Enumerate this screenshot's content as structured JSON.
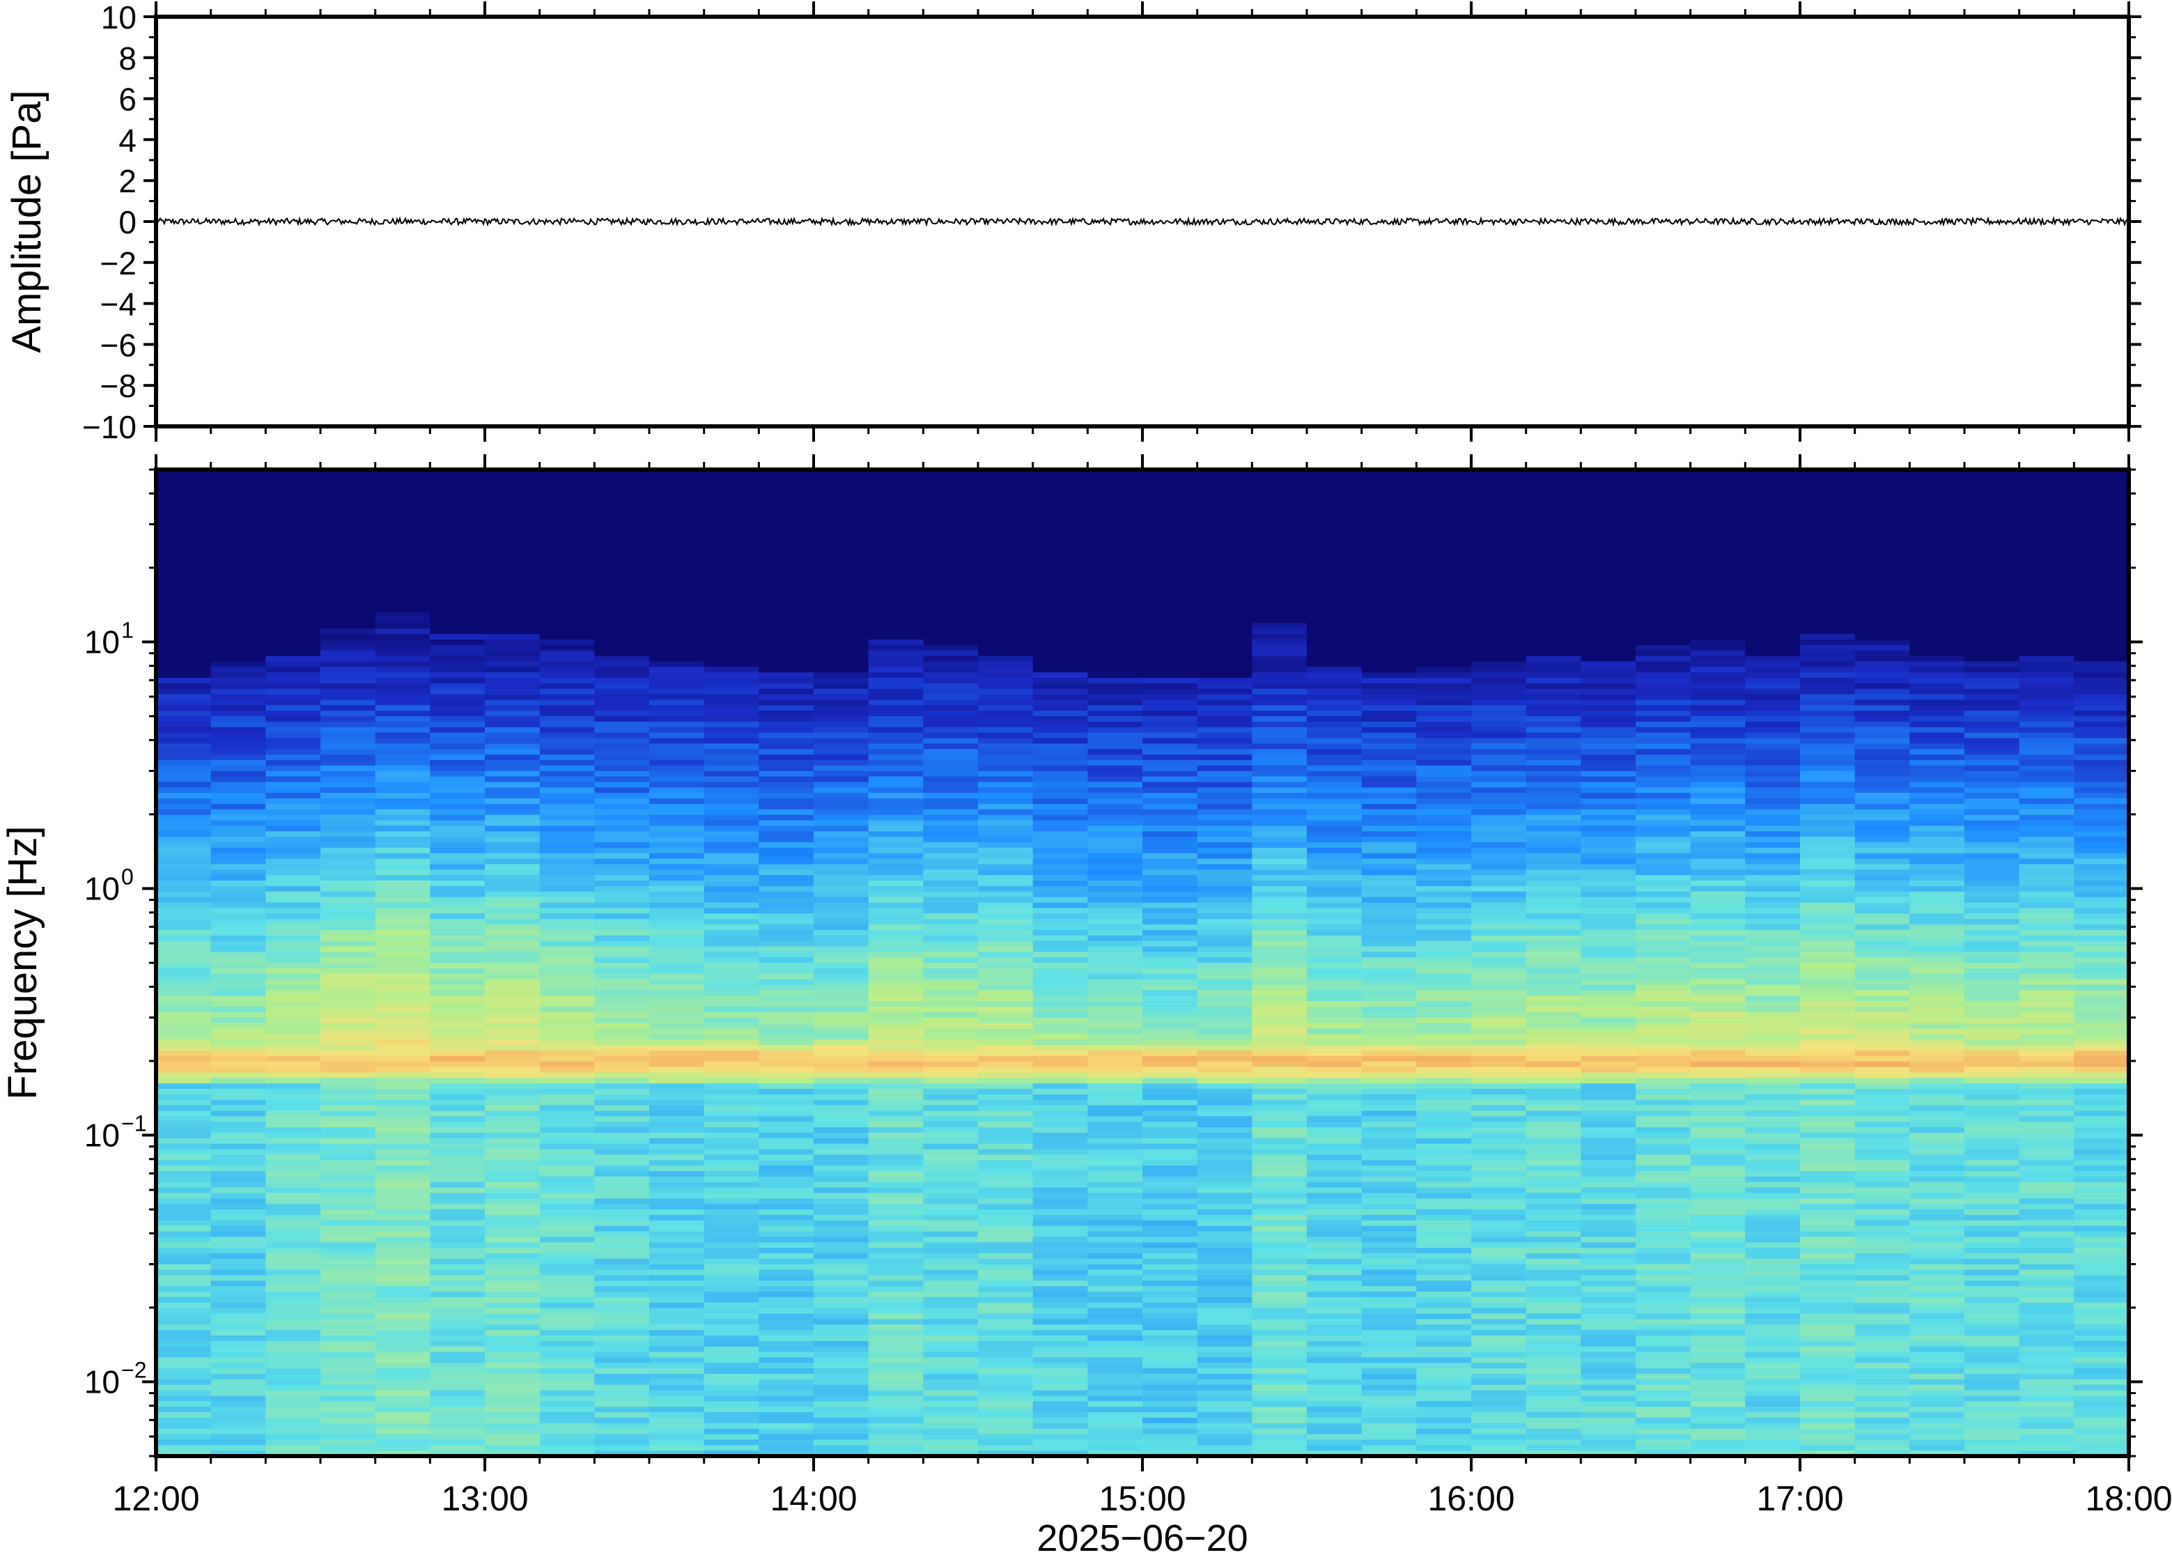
{
  "figure": {
    "xlabel": "2025−06−20",
    "x_ticks": [
      "12:00",
      "13:00",
      "14:00",
      "15:00",
      "16:00",
      "17:00",
      "18:00"
    ],
    "x_range": [
      "12:00",
      "18:00"
    ]
  },
  "chart_data": [
    {
      "type": "line",
      "panel": "waveform",
      "ylabel": "Amplitude [Pa]",
      "ylim": [
        -10,
        10
      ],
      "y_ticks": [
        "10",
        "8",
        "6",
        "4",
        "2",
        "0",
        "−2",
        "−4",
        "−6",
        "−8",
        "−10"
      ],
      "x": [
        "12:00",
        "18:00"
      ],
      "series": [
        {
          "values": [
            0.0,
            0.0
          ],
          "peak_abs_amplitude": 0.15
        }
      ],
      "grid": false,
      "line_color": "#000000"
    },
    {
      "type": "heatmap",
      "panel": "spectrogram",
      "ylabel": "Frequency [Hz]",
      "yscale": "log",
      "ylim": [
        0.005,
        50
      ],
      "y_ticks": [
        {
          "base": "10",
          "exp": "1"
        },
        {
          "base": "10",
          "exp": "0"
        },
        {
          "base": "10",
          "exp": "−1"
        },
        {
          "base": "10",
          "exp": "−2"
        }
      ],
      "x": [
        "12:00",
        "18:00"
      ],
      "colormap": [
        "#0a0a72",
        "#1a2ec8",
        "#1e90ff",
        "#5ee0e6",
        "#b8ee8a",
        "#f7e27a",
        "#f2a25a"
      ],
      "noise_cutoff_hz": 8,
      "microseism_peak_hz": 0.2,
      "time_columns": [
        {
          "t": "12:00",
          "energy": 0.4,
          "cutoff_hz": 7.0
        },
        {
          "t": "12:10",
          "energy": 0.35,
          "cutoff_hz": 8.5
        },
        {
          "t": "12:20",
          "energy": 0.55,
          "cutoff_hz": 9.0
        },
        {
          "t": "12:30",
          "energy": 0.7,
          "cutoff_hz": 11.5
        },
        {
          "t": "12:40",
          "energy": 0.8,
          "cutoff_hz": 13.0
        },
        {
          "t": "12:50",
          "energy": 0.55,
          "cutoff_hz": 11.0
        },
        {
          "t": "13:00",
          "energy": 0.65,
          "cutoff_hz": 11.0
        },
        {
          "t": "13:10",
          "energy": 0.5,
          "cutoff_hz": 10.0
        },
        {
          "t": "13:20",
          "energy": 0.4,
          "cutoff_hz": 9.0
        },
        {
          "t": "13:30",
          "energy": 0.35,
          "cutoff_hz": 8.5
        },
        {
          "t": "13:40",
          "energy": 0.3,
          "cutoff_hz": 8.0
        },
        {
          "t": "13:50",
          "energy": 0.25,
          "cutoff_hz": 7.5
        },
        {
          "t": "14:00",
          "energy": 0.3,
          "cutoff_hz": 7.5
        },
        {
          "t": "14:10",
          "energy": 0.55,
          "cutoff_hz": 10.0
        },
        {
          "t": "14:20",
          "energy": 0.45,
          "cutoff_hz": 9.5
        },
        {
          "t": "14:30",
          "energy": 0.5,
          "cutoff_hz": 9.0
        },
        {
          "t": "14:40",
          "energy": 0.3,
          "cutoff_hz": 7.5
        },
        {
          "t": "14:50",
          "energy": 0.25,
          "cutoff_hz": 7.0
        },
        {
          "t": "15:00",
          "energy": 0.2,
          "cutoff_hz": 7.0
        },
        {
          "t": "15:10",
          "energy": 0.25,
          "cutoff_hz": 7.0
        },
        {
          "t": "15:20",
          "energy": 0.6,
          "cutoff_hz": 12.0
        },
        {
          "t": "15:30",
          "energy": 0.35,
          "cutoff_hz": 8.0
        },
        {
          "t": "15:40",
          "energy": 0.3,
          "cutoff_hz": 7.5
        },
        {
          "t": "15:50",
          "energy": 0.35,
          "cutoff_hz": 8.0
        },
        {
          "t": "16:00",
          "energy": 0.45,
          "cutoff_hz": 8.5
        },
        {
          "t": "16:10",
          "energy": 0.5,
          "cutoff_hz": 9.0
        },
        {
          "t": "16:20",
          "energy": 0.4,
          "cutoff_hz": 8.5
        },
        {
          "t": "16:30",
          "energy": 0.55,
          "cutoff_hz": 9.5
        },
        {
          "t": "16:40",
          "energy": 0.6,
          "cutoff_hz": 10.0
        },
        {
          "t": "16:50",
          "energy": 0.45,
          "cutoff_hz": 9.0
        },
        {
          "t": "17:00",
          "energy": 0.65,
          "cutoff_hz": 11.0
        },
        {
          "t": "17:10",
          "energy": 0.55,
          "cutoff_hz": 10.0
        },
        {
          "t": "17:20",
          "energy": 0.5,
          "cutoff_hz": 9.0
        },
        {
          "t": "17:30",
          "energy": 0.45,
          "cutoff_hz": 8.5
        },
        {
          "t": "17:40",
          "energy": 0.5,
          "cutoff_hz": 9.0
        },
        {
          "t": "17:50",
          "energy": 0.45,
          "cutoff_hz": 8.5
        }
      ],
      "grid": false
    }
  ]
}
